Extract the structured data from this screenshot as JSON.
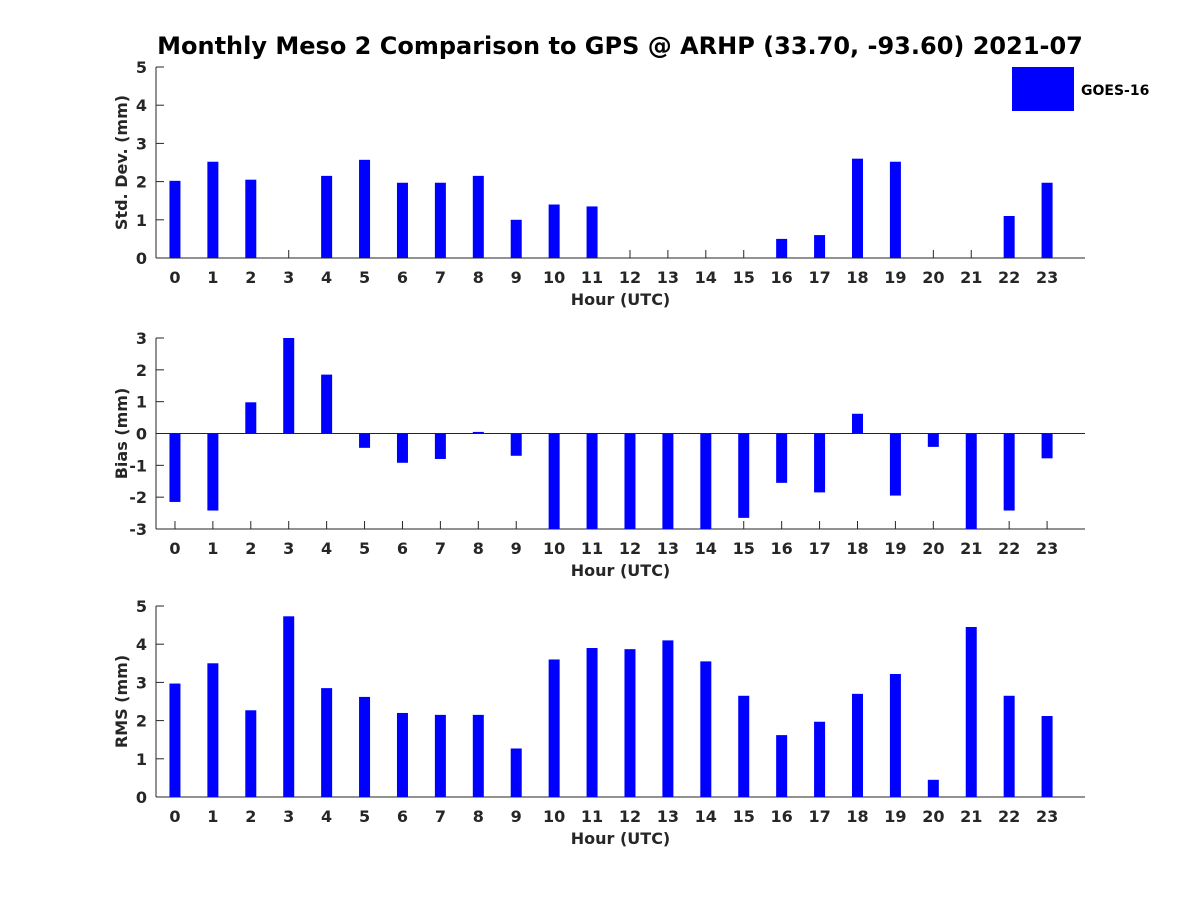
{
  "title": "Monthly Meso 2 Comparison to GPS @ ARHP (33.70, -93.60) 2021-07",
  "legend": {
    "label": "GOES-16",
    "color": "#0000ff",
    "placement": "top-right"
  },
  "bar_color": "#0000ff",
  "chart_data": [
    {
      "type": "bar",
      "name": "std",
      "xlabel": "Hour (UTC)",
      "ylabel": "Std. Dev. (mm)",
      "ylim": [
        0,
        5
      ],
      "yticks": [
        0,
        1,
        2,
        3,
        4,
        5
      ],
      "categories": [
        "0",
        "1",
        "2",
        "3",
        "4",
        "5",
        "6",
        "7",
        "8",
        "9",
        "10",
        "11",
        "12",
        "13",
        "14",
        "15",
        "16",
        "17",
        "18",
        "19",
        "20",
        "21",
        "22",
        "23"
      ],
      "values": [
        2.02,
        2.52,
        2.05,
        null,
        2.15,
        2.57,
        1.97,
        1.97,
        2.15,
        1.0,
        1.4,
        1.35,
        null,
        null,
        null,
        null,
        0.5,
        0.6,
        2.6,
        2.52,
        null,
        null,
        1.1,
        1.97
      ]
    },
    {
      "type": "bar",
      "name": "bias",
      "xlabel": "Hour (UTC)",
      "ylabel": "Bias (mm)",
      "ylim": [
        -3,
        3
      ],
      "yticks": [
        -3,
        -2,
        -1,
        0,
        1,
        2,
        3
      ],
      "categories": [
        "0",
        "1",
        "2",
        "3",
        "4",
        "5",
        "6",
        "7",
        "8",
        "9",
        "10",
        "11",
        "12",
        "13",
        "14",
        "15",
        "16",
        "17",
        "18",
        "19",
        "20",
        "21",
        "22",
        "23"
      ],
      "values": [
        -2.15,
        -2.42,
        0.98,
        3.0,
        1.85,
        -0.45,
        -0.92,
        -0.8,
        0.05,
        -0.7,
        -3.0,
        -3.0,
        -3.0,
        -3.0,
        -3.0,
        -2.65,
        -1.55,
        -1.85,
        0.62,
        -1.95,
        -0.42,
        -3.0,
        -2.42,
        -0.78
      ]
    },
    {
      "type": "bar",
      "name": "rms",
      "xlabel": "Hour (UTC)",
      "ylabel": "RMS (mm)",
      "ylim": [
        0,
        5
      ],
      "yticks": [
        0,
        1,
        2,
        3,
        4,
        5
      ],
      "categories": [
        "0",
        "1",
        "2",
        "3",
        "4",
        "5",
        "6",
        "7",
        "8",
        "9",
        "10",
        "11",
        "12",
        "13",
        "14",
        "15",
        "16",
        "17",
        "18",
        "19",
        "20",
        "21",
        "22",
        "23"
      ],
      "values": [
        2.97,
        3.5,
        2.27,
        4.73,
        2.85,
        2.62,
        2.2,
        2.15,
        2.15,
        1.27,
        3.6,
        3.9,
        3.87,
        4.1,
        3.55,
        2.65,
        1.62,
        1.97,
        2.7,
        3.22,
        0.45,
        4.45,
        2.65,
        2.12
      ]
    }
  ]
}
